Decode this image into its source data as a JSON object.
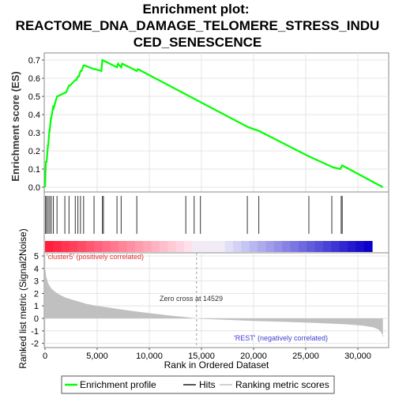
{
  "chart_data": {
    "type": "line",
    "title_lines": [
      "Enrichment plot:",
      "REACTOME_DNA_DAMAGE_TELOMERE_STRESS_INDU",
      "CED_SENESCENCE"
    ],
    "top_panel": {
      "ylabel": "Enrichment score (ES)",
      "ylim": [
        -0.02,
        0.72
      ],
      "yticks": [
        "0.0",
        "0.1",
        "0.2",
        "0.3",
        "0.4",
        "0.5",
        "0.6",
        "0.7"
      ],
      "series": [
        {
          "name": "Enrichment profile",
          "color": "#00ff00",
          "x": [
            0,
            80,
            150,
            280,
            300,
            420,
            450,
            560,
            600,
            800,
            850,
            1150,
            1200,
            1900,
            2000,
            2300,
            2400,
            2900,
            3000,
            3150,
            3250,
            3400,
            3500,
            3700,
            3800,
            4700,
            4800,
            5400,
            5500,
            6900,
            7000,
            7300,
            7400,
            8800,
            8900,
            19500,
            20500,
            25300,
            27600,
            28300,
            28500,
            32400
          ],
          "y": [
            0.0,
            0.14,
            0.14,
            0.23,
            0.23,
            0.31,
            0.31,
            0.38,
            0.38,
            0.45,
            0.44,
            0.5,
            0.5,
            0.52,
            0.52,
            0.56,
            0.56,
            0.59,
            0.59,
            0.61,
            0.61,
            0.64,
            0.64,
            0.67,
            0.67,
            0.65,
            0.65,
            0.64,
            0.7,
            0.66,
            0.68,
            0.66,
            0.68,
            0.64,
            0.65,
            0.33,
            0.31,
            0.17,
            0.11,
            0.1,
            0.12,
            0.0
          ]
        }
      ]
    },
    "hits": {
      "name": "Hits",
      "x": [
        50,
        150,
        300,
        450,
        600,
        800,
        1150,
        1900,
        2300,
        2900,
        3150,
        3400,
        3700,
        4700,
        5500,
        5600,
        6900,
        7300,
        8800,
        13500,
        14300,
        14900,
        19400,
        20500,
        25300,
        27500,
        28400,
        28500
      ]
    },
    "ranking_panel": {
      "name": "Ranking metric scores",
      "ylabel": "Ranked list metric (Signal2Noise)",
      "xlabel": "Rank in Ordered Dataset",
      "ylim": [
        -2,
        5
      ],
      "yticks": [
        "-2",
        "-1",
        "0",
        "1",
        "2",
        "3",
        "4",
        "5"
      ],
      "xlim": [
        0,
        32500
      ],
      "xticks": [
        "0",
        "5,000",
        "10,000",
        "15,000",
        "20,000",
        "25,000",
        "30,000"
      ],
      "profile_x": [
        0,
        100,
        300,
        600,
        1000,
        1500,
        2000,
        3000,
        4000,
        5000,
        6000,
        7000,
        8000,
        9000,
        10000,
        11000,
        12000,
        13000,
        14000,
        14529,
        15000,
        17000,
        20000,
        23000,
        26000,
        29000,
        30500,
        31500,
        32000,
        32300,
        32400
      ],
      "profile_y": [
        4.2,
        3.4,
        2.8,
        2.4,
        2.1,
        1.85,
        1.65,
        1.4,
        1.15,
        1.0,
        0.88,
        0.75,
        0.63,
        0.52,
        0.42,
        0.32,
        0.22,
        0.14,
        0.06,
        0.0,
        -0.04,
        -0.1,
        -0.2,
        -0.28,
        -0.36,
        -0.48,
        -0.58,
        -0.72,
        -0.9,
        -1.2,
        -1.6
      ],
      "zero_cross_label": "Zero cross at 14529",
      "pos_label": "'cluster5' (positively correlated)",
      "neg_label": "'REST' (negatively correlated)"
    },
    "legend": [
      "Enrichment profile",
      "Hits",
      "Ranking metric scores"
    ],
    "colors": {
      "es_line": "#00ff00",
      "pos_text": "#e53030",
      "neg_text": "#4040d0",
      "ranking_fill": "#c0c0c0",
      "zero_cross_line": "#a0a0a0"
    }
  }
}
